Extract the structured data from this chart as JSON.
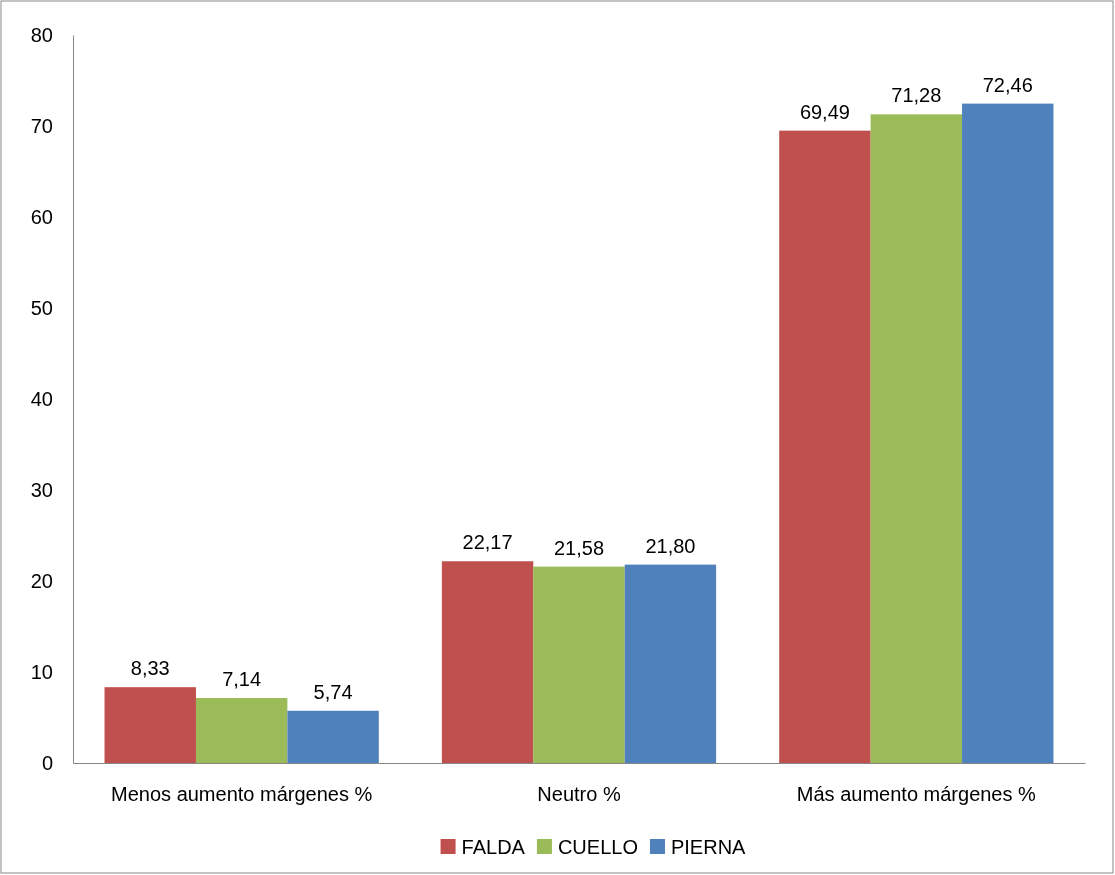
{
  "chart_data": {
    "type": "bar",
    "categories": [
      "Menos aumento márgenes %",
      "Neutro %",
      "Más aumento márgenes %"
    ],
    "series": [
      {
        "name": "FALDA",
        "color": "#c0504d",
        "values": [
          8.33,
          22.17,
          69.49
        ],
        "value_labels": [
          "8,33",
          "22,17",
          "69,49"
        ]
      },
      {
        "name": "CUELLO",
        "color": "#9bbb59",
        "values": [
          7.14,
          21.58,
          71.28
        ],
        "value_labels": [
          "7,14",
          "21,58",
          "71,28"
        ]
      },
      {
        "name": "PIERNA",
        "color": "#4f81bd",
        "values": [
          5.74,
          21.8,
          72.46
        ],
        "value_labels": [
          "5,74",
          "21,80",
          "72,46"
        ]
      }
    ],
    "ylim": [
      0,
      80
    ],
    "yticks": [
      0,
      10,
      20,
      30,
      40,
      50,
      60,
      70,
      80
    ],
    "grid": false,
    "legend": "bottom"
  }
}
